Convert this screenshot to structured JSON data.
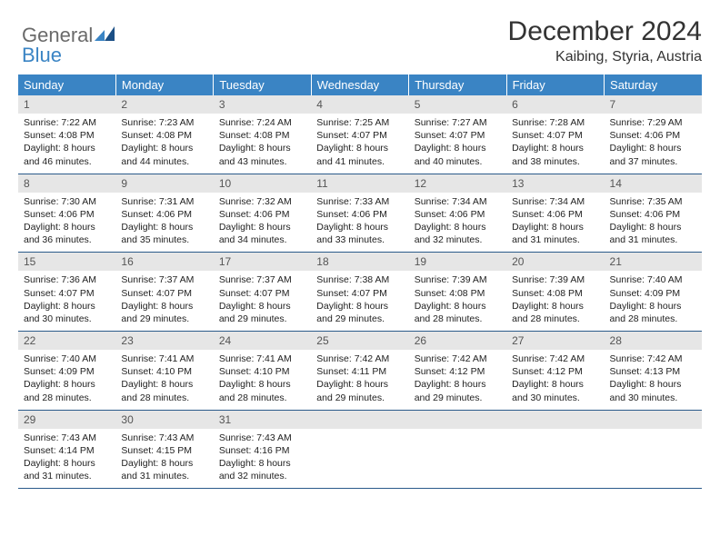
{
  "brand": {
    "part1": "General",
    "part2": "Blue"
  },
  "title": "December 2024",
  "location": "Kaibing, Styria, Austria",
  "colors": {
    "header_bg": "#3a84c4",
    "daynum_bg": "#e6e6e6",
    "rule": "#2a5a8a",
    "logo_gray": "#6a6a6a",
    "logo_blue": "#3a84c4"
  },
  "weekdays": [
    "Sunday",
    "Monday",
    "Tuesday",
    "Wednesday",
    "Thursday",
    "Friday",
    "Saturday"
  ],
  "weeks": [
    [
      {
        "n": "1",
        "sr": "Sunrise: 7:22 AM",
        "ss": "Sunset: 4:08 PM",
        "d1": "Daylight: 8 hours",
        "d2": "and 46 minutes."
      },
      {
        "n": "2",
        "sr": "Sunrise: 7:23 AM",
        "ss": "Sunset: 4:08 PM",
        "d1": "Daylight: 8 hours",
        "d2": "and 44 minutes."
      },
      {
        "n": "3",
        "sr": "Sunrise: 7:24 AM",
        "ss": "Sunset: 4:08 PM",
        "d1": "Daylight: 8 hours",
        "d2": "and 43 minutes."
      },
      {
        "n": "4",
        "sr": "Sunrise: 7:25 AM",
        "ss": "Sunset: 4:07 PM",
        "d1": "Daylight: 8 hours",
        "d2": "and 41 minutes."
      },
      {
        "n": "5",
        "sr": "Sunrise: 7:27 AM",
        "ss": "Sunset: 4:07 PM",
        "d1": "Daylight: 8 hours",
        "d2": "and 40 minutes."
      },
      {
        "n": "6",
        "sr": "Sunrise: 7:28 AM",
        "ss": "Sunset: 4:07 PM",
        "d1": "Daylight: 8 hours",
        "d2": "and 38 minutes."
      },
      {
        "n": "7",
        "sr": "Sunrise: 7:29 AM",
        "ss": "Sunset: 4:06 PM",
        "d1": "Daylight: 8 hours",
        "d2": "and 37 minutes."
      }
    ],
    [
      {
        "n": "8",
        "sr": "Sunrise: 7:30 AM",
        "ss": "Sunset: 4:06 PM",
        "d1": "Daylight: 8 hours",
        "d2": "and 36 minutes."
      },
      {
        "n": "9",
        "sr": "Sunrise: 7:31 AM",
        "ss": "Sunset: 4:06 PM",
        "d1": "Daylight: 8 hours",
        "d2": "and 35 minutes."
      },
      {
        "n": "10",
        "sr": "Sunrise: 7:32 AM",
        "ss": "Sunset: 4:06 PM",
        "d1": "Daylight: 8 hours",
        "d2": "and 34 minutes."
      },
      {
        "n": "11",
        "sr": "Sunrise: 7:33 AM",
        "ss": "Sunset: 4:06 PM",
        "d1": "Daylight: 8 hours",
        "d2": "and 33 minutes."
      },
      {
        "n": "12",
        "sr": "Sunrise: 7:34 AM",
        "ss": "Sunset: 4:06 PM",
        "d1": "Daylight: 8 hours",
        "d2": "and 32 minutes."
      },
      {
        "n": "13",
        "sr": "Sunrise: 7:34 AM",
        "ss": "Sunset: 4:06 PM",
        "d1": "Daylight: 8 hours",
        "d2": "and 31 minutes."
      },
      {
        "n": "14",
        "sr": "Sunrise: 7:35 AM",
        "ss": "Sunset: 4:06 PM",
        "d1": "Daylight: 8 hours",
        "d2": "and 31 minutes."
      }
    ],
    [
      {
        "n": "15",
        "sr": "Sunrise: 7:36 AM",
        "ss": "Sunset: 4:07 PM",
        "d1": "Daylight: 8 hours",
        "d2": "and 30 minutes."
      },
      {
        "n": "16",
        "sr": "Sunrise: 7:37 AM",
        "ss": "Sunset: 4:07 PM",
        "d1": "Daylight: 8 hours",
        "d2": "and 29 minutes."
      },
      {
        "n": "17",
        "sr": "Sunrise: 7:37 AM",
        "ss": "Sunset: 4:07 PM",
        "d1": "Daylight: 8 hours",
        "d2": "and 29 minutes."
      },
      {
        "n": "18",
        "sr": "Sunrise: 7:38 AM",
        "ss": "Sunset: 4:07 PM",
        "d1": "Daylight: 8 hours",
        "d2": "and 29 minutes."
      },
      {
        "n": "19",
        "sr": "Sunrise: 7:39 AM",
        "ss": "Sunset: 4:08 PM",
        "d1": "Daylight: 8 hours",
        "d2": "and 28 minutes."
      },
      {
        "n": "20",
        "sr": "Sunrise: 7:39 AM",
        "ss": "Sunset: 4:08 PM",
        "d1": "Daylight: 8 hours",
        "d2": "and 28 minutes."
      },
      {
        "n": "21",
        "sr": "Sunrise: 7:40 AM",
        "ss": "Sunset: 4:09 PM",
        "d1": "Daylight: 8 hours",
        "d2": "and 28 minutes."
      }
    ],
    [
      {
        "n": "22",
        "sr": "Sunrise: 7:40 AM",
        "ss": "Sunset: 4:09 PM",
        "d1": "Daylight: 8 hours",
        "d2": "and 28 minutes."
      },
      {
        "n": "23",
        "sr": "Sunrise: 7:41 AM",
        "ss": "Sunset: 4:10 PM",
        "d1": "Daylight: 8 hours",
        "d2": "and 28 minutes."
      },
      {
        "n": "24",
        "sr": "Sunrise: 7:41 AM",
        "ss": "Sunset: 4:10 PM",
        "d1": "Daylight: 8 hours",
        "d2": "and 28 minutes."
      },
      {
        "n": "25",
        "sr": "Sunrise: 7:42 AM",
        "ss": "Sunset: 4:11 PM",
        "d1": "Daylight: 8 hours",
        "d2": "and 29 minutes."
      },
      {
        "n": "26",
        "sr": "Sunrise: 7:42 AM",
        "ss": "Sunset: 4:12 PM",
        "d1": "Daylight: 8 hours",
        "d2": "and 29 minutes."
      },
      {
        "n": "27",
        "sr": "Sunrise: 7:42 AM",
        "ss": "Sunset: 4:12 PM",
        "d1": "Daylight: 8 hours",
        "d2": "and 30 minutes."
      },
      {
        "n": "28",
        "sr": "Sunrise: 7:42 AM",
        "ss": "Sunset: 4:13 PM",
        "d1": "Daylight: 8 hours",
        "d2": "and 30 minutes."
      }
    ],
    [
      {
        "n": "29",
        "sr": "Sunrise: 7:43 AM",
        "ss": "Sunset: 4:14 PM",
        "d1": "Daylight: 8 hours",
        "d2": "and 31 minutes."
      },
      {
        "n": "30",
        "sr": "Sunrise: 7:43 AM",
        "ss": "Sunset: 4:15 PM",
        "d1": "Daylight: 8 hours",
        "d2": "and 31 minutes."
      },
      {
        "n": "31",
        "sr": "Sunrise: 7:43 AM",
        "ss": "Sunset: 4:16 PM",
        "d1": "Daylight: 8 hours",
        "d2": "and 32 minutes."
      },
      {
        "n": "",
        "sr": "",
        "ss": "",
        "d1": "",
        "d2": ""
      },
      {
        "n": "",
        "sr": "",
        "ss": "",
        "d1": "",
        "d2": ""
      },
      {
        "n": "",
        "sr": "",
        "ss": "",
        "d1": "",
        "d2": ""
      },
      {
        "n": "",
        "sr": "",
        "ss": "",
        "d1": "",
        "d2": ""
      }
    ]
  ]
}
